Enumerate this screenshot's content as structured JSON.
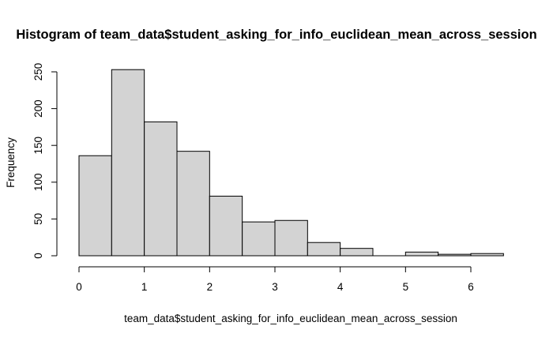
{
  "chart_data": {
    "type": "histogram",
    "title": "Histogram of team_data$student_asking_for_info_euclidean_mean_across_session",
    "xlabel": "team_data$student_asking_for_info_euclidean_mean_across_session",
    "ylabel": "Frequency",
    "bin_edges": [
      0,
      0.5,
      1,
      1.5,
      2,
      2.5,
      3,
      3.5,
      4,
      4.5,
      5,
      5.5,
      6,
      6.5
    ],
    "values": [
      136,
      253,
      182,
      142,
      81,
      46,
      48,
      18,
      10,
      0,
      5,
      2,
      3
    ],
    "xlim": [
      0,
      6.5
    ],
    "ylim": [
      0,
      250
    ],
    "x_ticks": [
      0,
      1,
      2,
      3,
      4,
      5,
      6
    ],
    "x_tick_labels": [
      "0",
      "1",
      "2",
      "3",
      "4",
      "5",
      "6"
    ],
    "y_ticks": [
      0,
      50,
      100,
      150,
      200,
      250
    ],
    "y_tick_labels": [
      "0",
      "50",
      "100",
      "150",
      "200",
      "250"
    ],
    "bar_fill": "#d3d3d3",
    "bar_stroke": "#000000",
    "grid": false
  }
}
